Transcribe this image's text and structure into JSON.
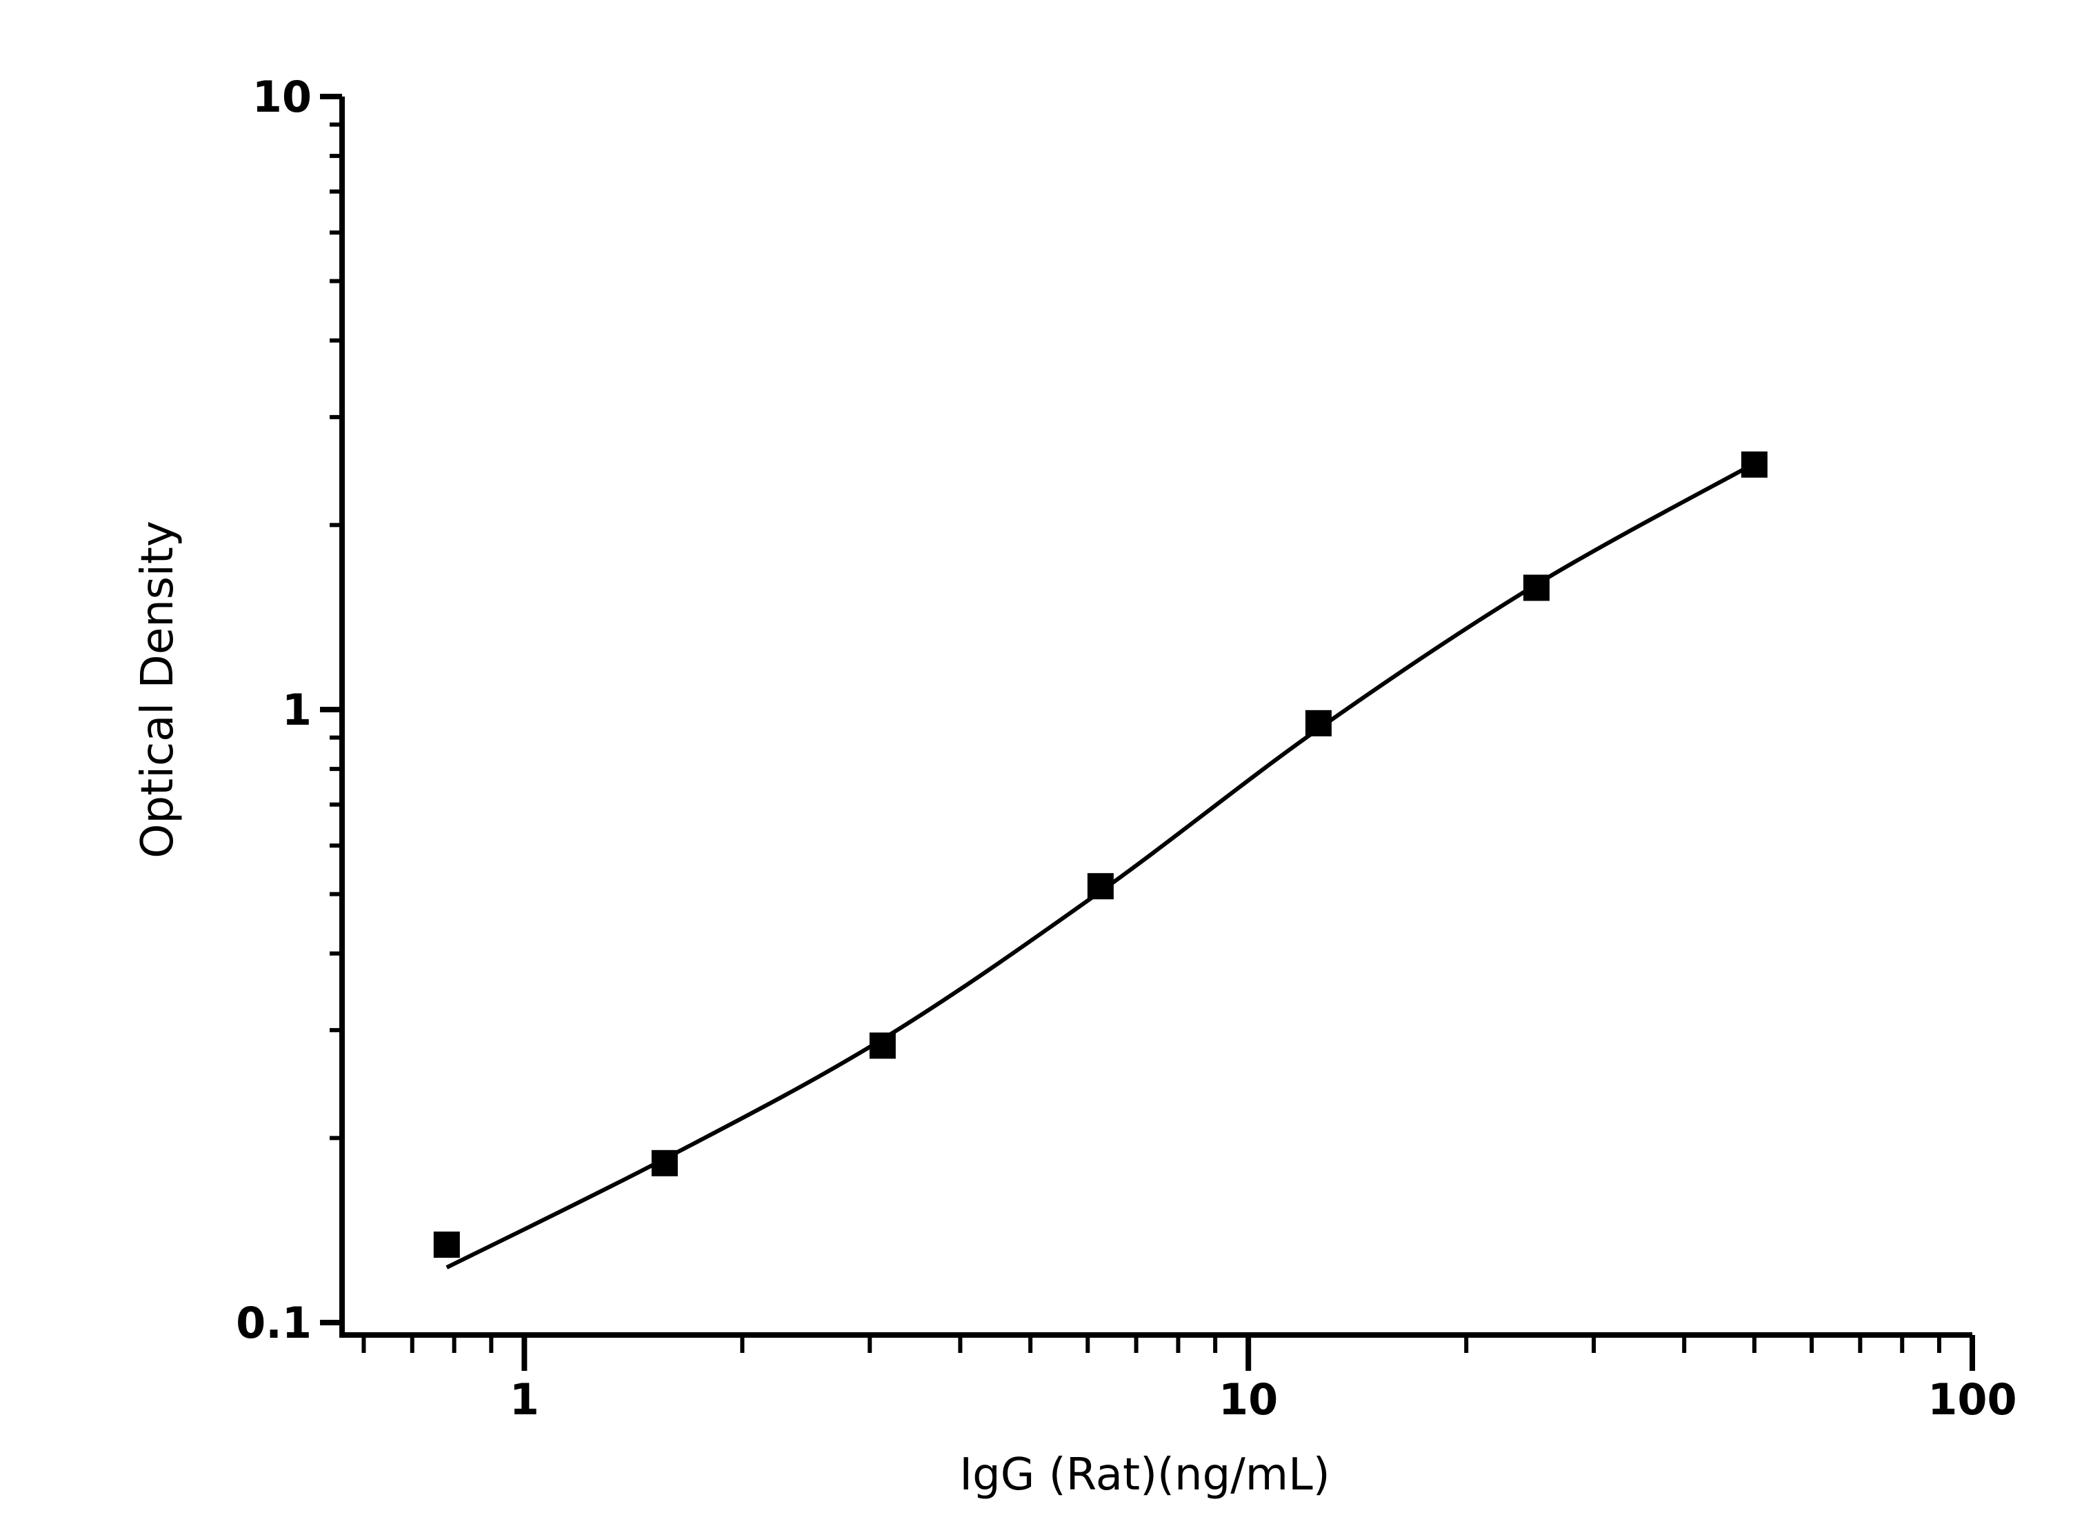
{
  "chart_data": {
    "type": "scatter",
    "title": "",
    "xlabel": "IgG (Rat)(ng/mL)",
    "ylabel": "Optical Density",
    "xscale": "log",
    "yscale": "log",
    "xlim": [
      0.56,
      100
    ],
    "ylim": [
      0.1,
      10
    ],
    "xticks": [
      {
        "v": 1,
        "label": "1"
      },
      {
        "v": 10,
        "label": "10"
      },
      {
        "v": 100,
        "label": "100"
      }
    ],
    "yticks": [
      {
        "v": 0.1,
        "label": "0.1"
      },
      {
        "v": 1,
        "label": "1"
      },
      {
        "v": 10,
        "label": "10"
      }
    ],
    "grid": false,
    "marker": "square",
    "color": "#000000",
    "series": [
      {
        "x": [
          0.78125,
          1.5625,
          3.125,
          6.25,
          12.5,
          25,
          50
        ],
        "y": [
          0.134,
          0.182,
          0.283,
          0.515,
          0.95,
          1.58,
          2.51
        ]
      }
    ],
    "fit_curve": {
      "x": [
        0.78125,
        1.5625,
        3.125,
        6.25,
        12.5,
        25,
        50
      ],
      "y": [
        0.123,
        0.185,
        0.29,
        0.505,
        0.93,
        1.6,
        2.52
      ]
    }
  }
}
